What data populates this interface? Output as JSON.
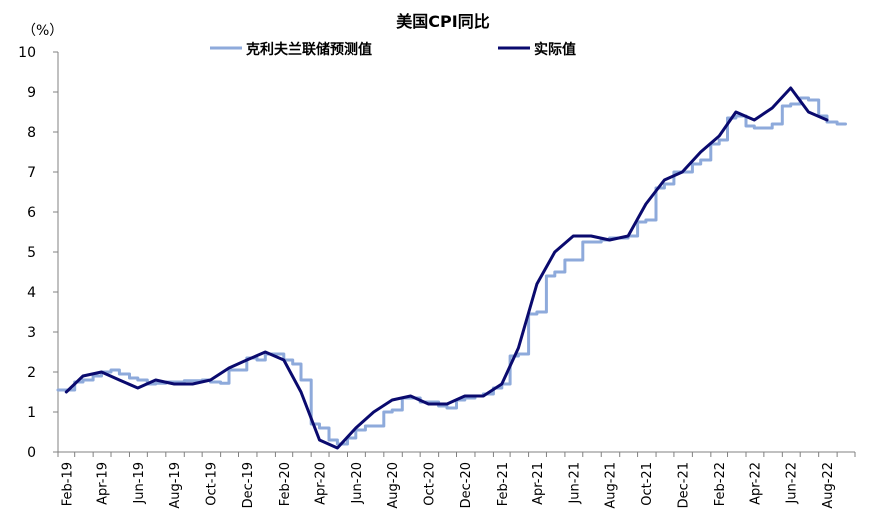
{
  "chart_data": {
    "type": "line",
    "title": "美国CPI同比",
    "unit_label": "（%）",
    "ylim": [
      0,
      10
    ],
    "yticks": [
      "0",
      "1",
      "2",
      "3",
      "4",
      "5",
      "6",
      "7",
      "8",
      "9",
      "10"
    ],
    "xtick_labels": [
      "Feb-19",
      "Apr-19",
      "Jun-19",
      "Aug-19",
      "Oct-19",
      "Dec-19",
      "Feb-20",
      "Apr-20",
      "Jun-20",
      "Aug-20",
      "Oct-20",
      "Dec-20",
      "Feb-21",
      "Apr-21",
      "Jun-21",
      "Aug-21",
      "Oct-21",
      "Dec-21",
      "Feb-22",
      "Apr-22",
      "Jun-22",
      "Aug-22"
    ],
    "grid": false,
    "legend_placement": "top",
    "series": [
      {
        "name": "克利夫兰联储预测值",
        "color": "#8eaadb",
        "style": "step",
        "x_start": "Feb-19",
        "x_end": "Sep-22",
        "points": [
          [
            "2019-02-01",
            1.55
          ],
          [
            "2019-02-15",
            1.55
          ],
          [
            "2019-03-01",
            1.6
          ],
          [
            "2019-03-01",
            1.75
          ],
          [
            "2019-03-15",
            1.8
          ],
          [
            "2019-04-01",
            1.9
          ],
          [
            "2019-04-15",
            2.0
          ],
          [
            "2019-05-01",
            2.05
          ],
          [
            "2019-05-15",
            1.95
          ],
          [
            "2019-06-01",
            1.85
          ],
          [
            "2019-06-15",
            1.8
          ],
          [
            "2019-07-01",
            1.7
          ],
          [
            "2019-07-15",
            1.72
          ],
          [
            "2019-08-01",
            1.75
          ],
          [
            "2019-08-15",
            1.75
          ],
          [
            "2019-09-01",
            1.78
          ],
          [
            "2019-09-15",
            1.78
          ],
          [
            "2019-10-01",
            1.8
          ],
          [
            "2019-10-15",
            1.75
          ],
          [
            "2019-11-01",
            1.72
          ],
          [
            "2019-11-15",
            2.05
          ],
          [
            "2019-12-01",
            2.05
          ],
          [
            "2019-12-15",
            2.35
          ],
          [
            "2020-01-01",
            2.3
          ],
          [
            "2020-01-15",
            2.45
          ],
          [
            "2020-02-01",
            2.45
          ],
          [
            "2020-02-15",
            2.3
          ],
          [
            "2020-03-01",
            2.2
          ],
          [
            "2020-03-15",
            1.8
          ],
          [
            "2020-04-01",
            1.75
          ],
          [
            "2020-04-01",
            0.7
          ],
          [
            "2020-04-15",
            0.6
          ],
          [
            "2020-05-01",
            0.3
          ],
          [
            "2020-05-15",
            0.2
          ],
          [
            "2020-06-01",
            0.35
          ],
          [
            "2020-06-15",
            0.55
          ],
          [
            "2020-07-01",
            0.65
          ],
          [
            "2020-07-15",
            0.65
          ],
          [
            "2020-08-01",
            1.0
          ],
          [
            "2020-08-15",
            1.05
          ],
          [
            "2020-09-01",
            1.35
          ],
          [
            "2020-09-15",
            1.35
          ],
          [
            "2020-10-01",
            1.25
          ],
          [
            "2020-10-15",
            1.25
          ],
          [
            "2020-11-01",
            1.15
          ],
          [
            "2020-11-15",
            1.1
          ],
          [
            "2020-12-01",
            1.3
          ],
          [
            "2020-12-15",
            1.35
          ],
          [
            "2021-01-01",
            1.4
          ],
          [
            "2021-01-15",
            1.45
          ],
          [
            "2021-02-01",
            1.6
          ],
          [
            "2021-02-15",
            1.7
          ],
          [
            "2021-03-01",
            2.4
          ],
          [
            "2021-03-15",
            2.45
          ],
          [
            "2021-04-01",
            3.45
          ],
          [
            "2021-04-15",
            3.5
          ],
          [
            "2021-05-01",
            4.4
          ],
          [
            "2021-05-15",
            4.5
          ],
          [
            "2021-06-01",
            4.8
          ],
          [
            "2021-06-15",
            4.8
          ],
          [
            "2021-07-01",
            5.25
          ],
          [
            "2021-07-15",
            5.25
          ],
          [
            "2021-08-01",
            5.3
          ],
          [
            "2021-08-15",
            5.35
          ],
          [
            "2021-09-01",
            5.35
          ],
          [
            "2021-09-15",
            5.4
          ],
          [
            "2021-10-01",
            5.75
          ],
          [
            "2021-10-15",
            5.8
          ],
          [
            "2021-11-01",
            6.6
          ],
          [
            "2021-11-15",
            6.7
          ],
          [
            "2021-12-01",
            7.0
          ],
          [
            "2021-12-15",
            7.0
          ],
          [
            "2022-01-01",
            7.2
          ],
          [
            "2022-01-15",
            7.3
          ],
          [
            "2022-02-01",
            7.7
          ],
          [
            "2022-02-15",
            7.8
          ],
          [
            "2022-03-01",
            8.35
          ],
          [
            "2022-03-15",
            8.4
          ],
          [
            "2022-04-01",
            8.15
          ],
          [
            "2022-04-15",
            8.1
          ],
          [
            "2022-05-01",
            8.1
          ],
          [
            "2022-05-15",
            8.2
          ],
          [
            "2022-06-01",
            8.65
          ],
          [
            "2022-06-15",
            8.7
          ],
          [
            "2022-07-01",
            8.85
          ],
          [
            "2022-07-15",
            8.8
          ],
          [
            "2022-08-01",
            8.4
          ],
          [
            "2022-08-15",
            8.25
          ],
          [
            "2022-09-01",
            8.2
          ],
          [
            "2022-09-15",
            8.2
          ]
        ]
      },
      {
        "name": "实际值",
        "color": "#0a0a6e",
        "style": "line",
        "points": [
          [
            "2019-02-15",
            1.5
          ],
          [
            "2019-03-15",
            1.9
          ],
          [
            "2019-04-15",
            2.0
          ],
          [
            "2019-05-15",
            1.8
          ],
          [
            "2019-06-15",
            1.6
          ],
          [
            "2019-07-15",
            1.8
          ],
          [
            "2019-08-15",
            1.7
          ],
          [
            "2019-09-15",
            1.7
          ],
          [
            "2019-10-15",
            1.8
          ],
          [
            "2019-11-15",
            2.1
          ],
          [
            "2019-12-15",
            2.3
          ],
          [
            "2020-01-15",
            2.5
          ],
          [
            "2020-02-15",
            2.3
          ],
          [
            "2020-03-15",
            1.5
          ],
          [
            "2020-04-15",
            0.3
          ],
          [
            "2020-05-15",
            0.1
          ],
          [
            "2020-06-15",
            0.6
          ],
          [
            "2020-07-15",
            1.0
          ],
          [
            "2020-08-15",
            1.3
          ],
          [
            "2020-09-15",
            1.4
          ],
          [
            "2020-10-15",
            1.2
          ],
          [
            "2020-11-15",
            1.2
          ],
          [
            "2020-12-15",
            1.4
          ],
          [
            "2021-01-15",
            1.4
          ],
          [
            "2021-02-15",
            1.7
          ],
          [
            "2021-03-15",
            2.6
          ],
          [
            "2021-04-15",
            4.2
          ],
          [
            "2021-05-15",
            5.0
          ],
          [
            "2021-06-15",
            5.4
          ],
          [
            "2021-07-15",
            5.4
          ],
          [
            "2021-08-15",
            5.3
          ],
          [
            "2021-09-15",
            5.4
          ],
          [
            "2021-10-15",
            6.2
          ],
          [
            "2021-11-15",
            6.8
          ],
          [
            "2021-12-15",
            7.0
          ],
          [
            "2022-01-15",
            7.5
          ],
          [
            "2022-02-15",
            7.9
          ],
          [
            "2022-03-15",
            8.5
          ],
          [
            "2022-04-15",
            8.3
          ],
          [
            "2022-05-15",
            8.6
          ],
          [
            "2022-06-15",
            9.1
          ],
          [
            "2022-07-15",
            8.5
          ],
          [
            "2022-08-15",
            8.3
          ]
        ]
      }
    ]
  }
}
